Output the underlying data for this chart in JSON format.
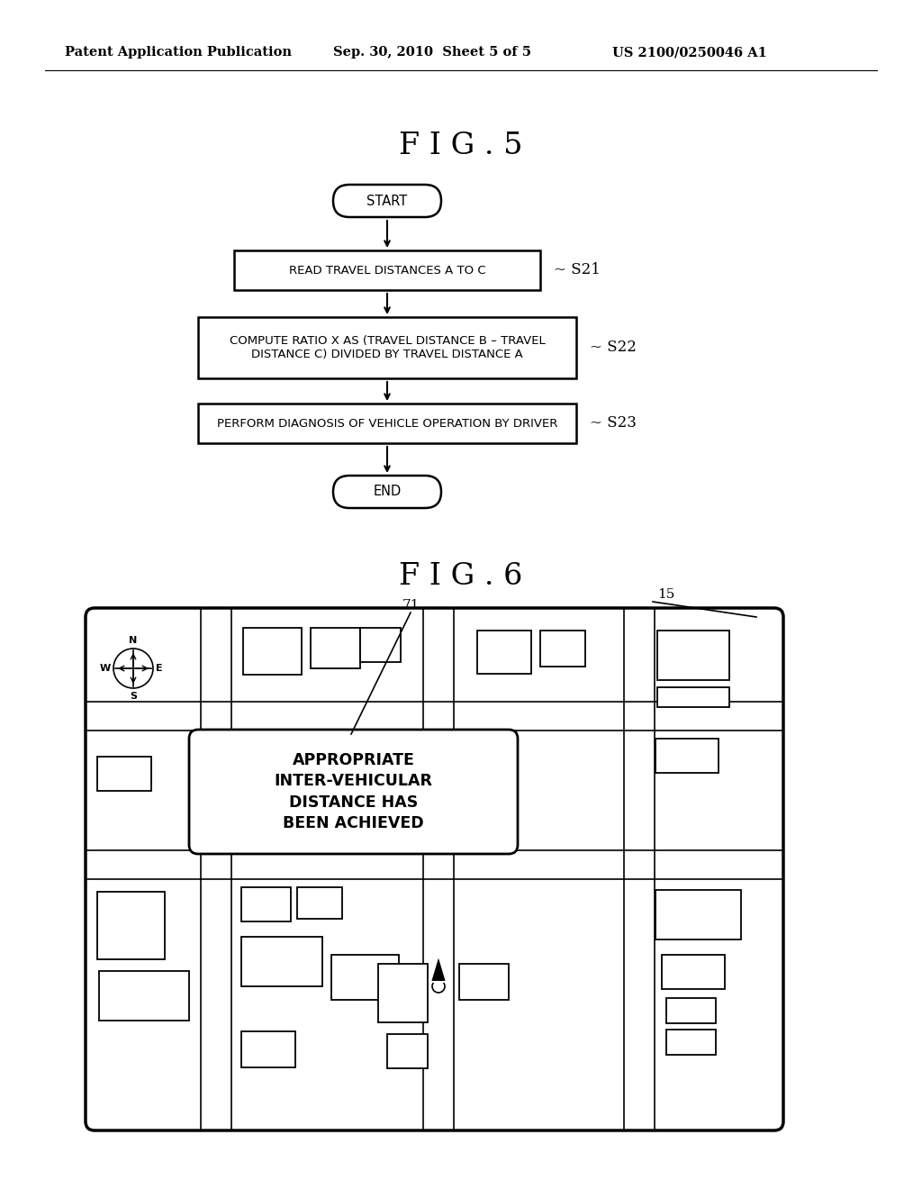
{
  "background_color": "#ffffff",
  "header_left": "Patent Application Publication",
  "header_mid": "Sep. 30, 2010  Sheet 5 of 5",
  "header_right": "US 2100/0250046 A1",
  "fig5_title": "F I G . 5",
  "fig6_title": "F I G . 6",
  "flowchart": {
    "start_label": "START",
    "end_label": "END",
    "steps": [
      {
        "label": "READ TRAVEL DISTANCES A TO C",
        "tag": "S21"
      },
      {
        "label": "COMPUTE RATIO X AS (TRAVEL DISTANCE B – TRAVEL\nDISTANCE C) DIVIDED BY TRAVEL DISTANCE A",
        "tag": "S22"
      },
      {
        "label": "PERFORM DIAGNOSIS OF VEHICLE OPERATION BY DRIVER",
        "tag": "S23"
      }
    ]
  },
  "map": {
    "label_71": "71",
    "label_15": "15",
    "popup_text": "APPROPRIATE\nINTER-VEHICULAR\nDISTANCE HAS\nBEEN ACHIEVED"
  }
}
